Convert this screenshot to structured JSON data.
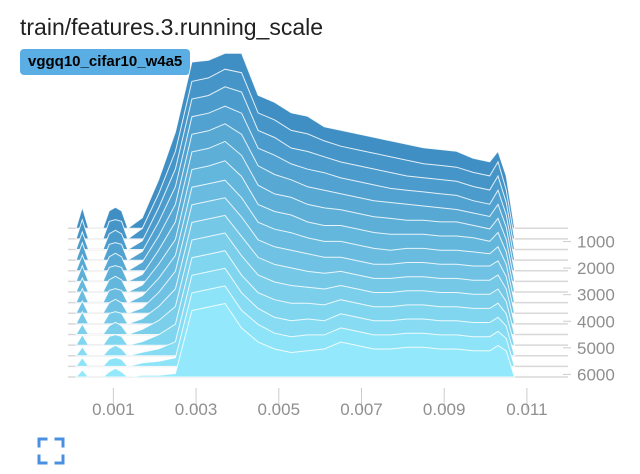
{
  "header": {
    "title": "train/features.3.running_scale",
    "run_label": "vggq10_cifar10_w4a5",
    "run_color": "#5aaee3"
  },
  "controls": {
    "fullscreen_icon": "expand-corners-icon",
    "icon_color": "#4a90e2"
  },
  "chart_data": {
    "type": "area",
    "title": "train/features.3.running_scale",
    "xlabel": "",
    "ylabel": "",
    "x_ticks": [
      "0.001",
      "0.003",
      "0.005",
      "0.007",
      "0.009",
      "0.011"
    ],
    "y_ticks": [
      "1000",
      "2000",
      "3000",
      "4000",
      "5000",
      "6000"
    ],
    "xlim": [
      0.0,
      0.0118
    ],
    "step_range": [
      0,
      6400
    ],
    "colors": {
      "back": "#3f8fc4",
      "front": "#93e9fb",
      "axis_text": "#8f8f8f",
      "offscreen": "#d8d8d8"
    },
    "x": [
      0.0001,
      0.00025,
      0.0004,
      0.00075,
      0.0009,
      0.00105,
      0.0012,
      0.00135,
      0.0017,
      0.0021,
      0.0025,
      0.0029,
      0.0033,
      0.0037,
      0.0041,
      0.0045,
      0.0049,
      0.0053,
      0.0057,
      0.0061,
      0.0065,
      0.0069,
      0.0073,
      0.0077,
      0.0081,
      0.0085,
      0.0089,
      0.0093,
      0.0097,
      0.0101,
      0.0103,
      0.0105,
      0.0107
    ],
    "series": [
      {
        "step": 500,
        "values": [
          0,
          0.12,
          0,
          0,
          0.1,
          0.12,
          0.1,
          0,
          0.06,
          0.28,
          0.55,
          0.95,
          0.96,
          1.0,
          1.0,
          0.76,
          0.72,
          0.66,
          0.64,
          0.58,
          0.56,
          0.54,
          0.52,
          0.5,
          0.48,
          0.46,
          0.45,
          0.44,
          0.4,
          0.38,
          0.44,
          0.3,
          0
        ]
      },
      {
        "step": 900,
        "values": [
          0,
          0.11,
          0,
          0,
          0.1,
          0.11,
          0.1,
          0,
          0.06,
          0.26,
          0.5,
          0.9,
          0.92,
          0.97,
          0.95,
          0.72,
          0.68,
          0.62,
          0.6,
          0.56,
          0.53,
          0.51,
          0.49,
          0.47,
          0.45,
          0.43,
          0.42,
          0.41,
          0.38,
          0.36,
          0.44,
          0.28,
          0
        ]
      },
      {
        "step": 1300,
        "values": [
          0,
          0.1,
          0,
          0,
          0.09,
          0.11,
          0.09,
          0,
          0.05,
          0.24,
          0.46,
          0.86,
          0.88,
          0.93,
          0.9,
          0.68,
          0.64,
          0.58,
          0.56,
          0.53,
          0.5,
          0.48,
          0.46,
          0.44,
          0.42,
          0.41,
          0.4,
          0.39,
          0.36,
          0.34,
          0.42,
          0.27,
          0
        ]
      },
      {
        "step": 1700,
        "values": [
          0,
          0.1,
          0,
          0,
          0.09,
          0.1,
          0.09,
          0,
          0.05,
          0.22,
          0.42,
          0.82,
          0.84,
          0.88,
          0.84,
          0.64,
          0.6,
          0.55,
          0.52,
          0.5,
          0.47,
          0.45,
          0.43,
          0.41,
          0.4,
          0.39,
          0.38,
          0.37,
          0.34,
          0.32,
          0.4,
          0.26,
          0
        ]
      },
      {
        "step": 2100,
        "values": [
          0,
          0.09,
          0,
          0,
          0.08,
          0.1,
          0.08,
          0,
          0.05,
          0.2,
          0.38,
          0.78,
          0.8,
          0.84,
          0.78,
          0.6,
          0.55,
          0.52,
          0.48,
          0.46,
          0.44,
          0.42,
          0.4,
          0.39,
          0.38,
          0.37,
          0.36,
          0.35,
          0.33,
          0.31,
          0.38,
          0.25,
          0
        ]
      },
      {
        "step": 2500,
        "values": [
          0,
          0.09,
          0,
          0,
          0.08,
          0.09,
          0.08,
          0,
          0.04,
          0.18,
          0.34,
          0.74,
          0.76,
          0.8,
          0.72,
          0.55,
          0.5,
          0.48,
          0.44,
          0.42,
          0.41,
          0.39,
          0.37,
          0.36,
          0.35,
          0.35,
          0.34,
          0.34,
          0.32,
          0.3,
          0.36,
          0.24,
          0
        ]
      },
      {
        "step": 2900,
        "values": [
          0,
          0.08,
          0,
          0,
          0.07,
          0.09,
          0.07,
          0,
          0.04,
          0.16,
          0.3,
          0.7,
          0.72,
          0.75,
          0.66,
          0.5,
          0.46,
          0.44,
          0.4,
          0.38,
          0.38,
          0.36,
          0.34,
          0.33,
          0.33,
          0.33,
          0.32,
          0.32,
          0.31,
          0.29,
          0.34,
          0.23,
          0
        ]
      },
      {
        "step": 3300,
        "values": [
          0,
          0.08,
          0,
          0,
          0.07,
          0.08,
          0.07,
          0,
          0.04,
          0.14,
          0.27,
          0.66,
          0.68,
          0.7,
          0.6,
          0.46,
          0.42,
          0.4,
          0.37,
          0.35,
          0.35,
          0.33,
          0.31,
          0.3,
          0.31,
          0.31,
          0.3,
          0.3,
          0.29,
          0.28,
          0.32,
          0.22,
          0
        ]
      },
      {
        "step": 3700,
        "values": [
          0,
          0.07,
          0,
          0,
          0.06,
          0.08,
          0.06,
          0,
          0.03,
          0.12,
          0.24,
          0.62,
          0.64,
          0.66,
          0.55,
          0.42,
          0.38,
          0.36,
          0.34,
          0.32,
          0.32,
          0.3,
          0.28,
          0.28,
          0.29,
          0.29,
          0.28,
          0.28,
          0.27,
          0.27,
          0.3,
          0.21,
          0
        ]
      },
      {
        "step": 4100,
        "values": [
          0,
          0.07,
          0,
          0,
          0.06,
          0.07,
          0.06,
          0,
          0.03,
          0.1,
          0.2,
          0.58,
          0.6,
          0.62,
          0.5,
          0.38,
          0.34,
          0.32,
          0.3,
          0.29,
          0.3,
          0.28,
          0.26,
          0.26,
          0.27,
          0.27,
          0.26,
          0.26,
          0.25,
          0.25,
          0.28,
          0.2,
          0
        ]
      },
      {
        "step": 4500,
        "values": [
          0,
          0.06,
          0,
          0,
          0.05,
          0.07,
          0.05,
          0,
          0.03,
          0.08,
          0.16,
          0.54,
          0.56,
          0.58,
          0.45,
          0.34,
          0.3,
          0.28,
          0.27,
          0.26,
          0.28,
          0.26,
          0.24,
          0.24,
          0.25,
          0.25,
          0.24,
          0.24,
          0.23,
          0.23,
          0.26,
          0.19,
          0
        ]
      },
      {
        "step": 4900,
        "values": [
          0,
          0.06,
          0,
          0,
          0.05,
          0.06,
          0.05,
          0,
          0.02,
          0.06,
          0.12,
          0.5,
          0.52,
          0.54,
          0.4,
          0.3,
          0.26,
          0.24,
          0.24,
          0.23,
          0.26,
          0.24,
          0.22,
          0.22,
          0.23,
          0.23,
          0.22,
          0.22,
          0.21,
          0.21,
          0.24,
          0.18,
          0
        ]
      },
      {
        "step": 5300,
        "values": [
          0,
          0.05,
          0,
          0,
          0.04,
          0.06,
          0.04,
          0,
          0.02,
          0.04,
          0.08,
          0.46,
          0.48,
          0.5,
          0.36,
          0.27,
          0.22,
          0.2,
          0.21,
          0.2,
          0.24,
          0.22,
          0.2,
          0.2,
          0.21,
          0.21,
          0.2,
          0.2,
          0.19,
          0.19,
          0.22,
          0.17,
          0
        ]
      },
      {
        "step": 5700,
        "values": [
          0,
          0.05,
          0,
          0,
          0.04,
          0.05,
          0.04,
          0,
          0.02,
          0.03,
          0.05,
          0.42,
          0.44,
          0.46,
          0.32,
          0.24,
          0.19,
          0.17,
          0.18,
          0.18,
          0.22,
          0.2,
          0.18,
          0.18,
          0.19,
          0.19,
          0.18,
          0.18,
          0.17,
          0.17,
          0.2,
          0.16,
          0
        ]
      },
      {
        "step": 6100,
        "values": [
          0,
          0.04,
          0,
          0,
          0.03,
          0.05,
          0.03,
          0,
          0.01,
          0.01,
          0.02,
          0.38,
          0.4,
          0.42,
          0.28,
          0.2,
          0.16,
          0.14,
          0.15,
          0.16,
          0.2,
          0.18,
          0.16,
          0.16,
          0.17,
          0.17,
          0.16,
          0.16,
          0.15,
          0.15,
          0.18,
          0.15,
          0
        ]
      }
    ]
  }
}
